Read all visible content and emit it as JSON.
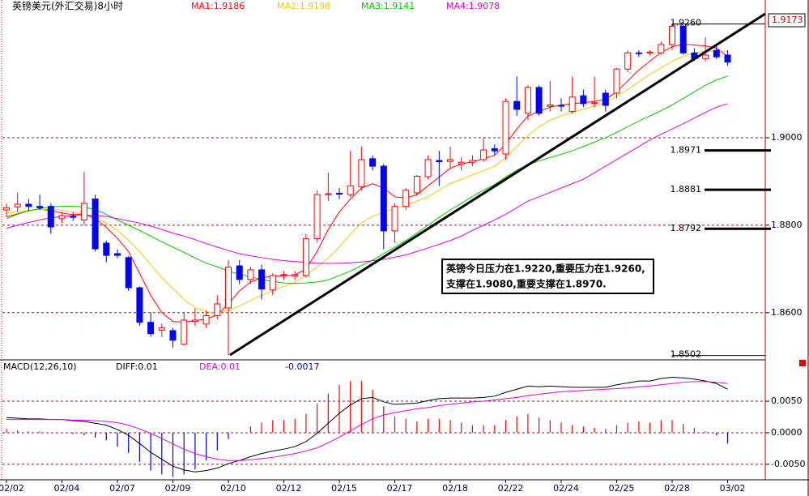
{
  "chart_data": [
    {
      "type": "candlestick",
      "title": "英镑美元(外汇交易)8小时",
      "categories": [
        "02/02",
        null,
        null,
        null,
        null,
        "02/04",
        null,
        null,
        null,
        null,
        "02/07",
        null,
        null,
        null,
        null,
        "02/09",
        null,
        null,
        null,
        null,
        "02/10",
        null,
        null,
        null,
        null,
        "02/12",
        null,
        null,
        null,
        null,
        "02/15",
        null,
        null,
        null,
        null,
        "02/17",
        null,
        null,
        null,
        null,
        "02/18",
        null,
        null,
        null,
        null,
        "02/22",
        null,
        null,
        null,
        null,
        "02/24",
        null,
        null,
        null,
        null,
        "02/25",
        null,
        null,
        null,
        null,
        "02/28",
        null,
        null,
        null,
        null,
        "03/02"
      ],
      "open": [
        1.8835,
        1.8842,
        1.8848,
        1.8843,
        1.8843,
        1.8815,
        1.882,
        1.8812,
        1.886,
        1.8759,
        1.8735,
        1.8726,
        1.8657,
        1.8578,
        1.856,
        1.8559,
        1.8528,
        1.858,
        1.8574,
        1.8593,
        1.8611,
        1.8707,
        1.8676,
        1.8698,
        1.8652,
        1.8685,
        1.8684,
        1.8685,
        1.8769,
        1.887,
        1.8873,
        1.887,
        1.8888,
        1.8952,
        1.8935,
        1.8787,
        1.8843,
        1.8874,
        1.8911,
        1.8948,
        1.8946,
        1.894,
        1.8944,
        1.895,
        1.8975,
        1.8963,
        1.9083,
        1.9056,
        1.9115,
        1.9072,
        1.9074,
        1.906,
        1.9096,
        1.9078,
        1.9102,
        1.9102,
        1.9157,
        1.9194,
        1.9194,
        1.9194,
        1.9213,
        1.9255,
        1.9194,
        1.9181,
        1.92,
        1.9189
      ],
      "high": [
        1.885,
        1.8875,
        1.886,
        1.887,
        1.885,
        1.883,
        1.883,
        1.8922,
        1.887,
        1.8765,
        1.8745,
        1.873,
        1.866,
        1.86,
        1.8575,
        1.8565,
        1.86,
        1.861,
        1.8605,
        1.864,
        1.872,
        1.872,
        1.8705,
        1.871,
        1.869,
        1.8695,
        1.8695,
        1.878,
        1.888,
        1.892,
        1.8885,
        1.897,
        1.898,
        1.896,
        1.894,
        1.885,
        1.8885,
        1.8915,
        1.896,
        1.897,
        1.898,
        1.8955,
        1.896,
        1.9,
        1.8985,
        1.909,
        1.914,
        1.912,
        1.912,
        1.913,
        1.909,
        1.914,
        1.911,
        1.914,
        1.911,
        1.916,
        1.92,
        1.92,
        1.92,
        1.922,
        1.926,
        1.9258,
        1.9205,
        1.923,
        1.9215,
        1.92
      ],
      "low": [
        1.882,
        1.883,
        1.8832,
        1.8835,
        1.878,
        1.8805,
        1.881,
        1.88,
        1.874,
        1.8715,
        1.8725,
        1.865,
        1.857,
        1.8545,
        1.8545,
        1.852,
        1.8525,
        1.857,
        1.8565,
        1.8585,
        1.8502,
        1.8665,
        1.8665,
        1.863,
        1.864,
        1.8675,
        1.8675,
        1.868,
        1.876,
        1.8855,
        1.886,
        1.8865,
        1.888,
        1.8925,
        1.8745,
        1.876,
        1.8835,
        1.8868,
        1.8905,
        1.889,
        1.893,
        1.8925,
        1.8935,
        1.8945,
        1.896,
        1.895,
        1.905,
        1.904,
        1.905,
        1.906,
        1.906,
        1.9055,
        1.907,
        1.907,
        1.906,
        1.909,
        1.915,
        1.9185,
        1.9188,
        1.919,
        1.92,
        1.919,
        1.9175,
        1.9175,
        1.918,
        1.9165
      ],
      "close": [
        1.884,
        1.8848,
        1.8843,
        1.884,
        1.8796,
        1.8822,
        1.8818,
        1.885,
        1.8746,
        1.8731,
        1.8731,
        1.8657,
        1.8578,
        1.8552,
        1.8565,
        1.8537,
        1.8583,
        1.8583,
        1.8593,
        1.862,
        1.8704,
        1.8676,
        1.8698,
        1.8654,
        1.8685,
        1.8687,
        1.8687,
        1.8769,
        1.887,
        1.8872,
        1.8871,
        1.889,
        1.895,
        1.8935,
        1.8787,
        1.8843,
        1.888,
        1.8912,
        1.895,
        1.8945,
        1.895,
        1.8944,
        1.8948,
        1.8972,
        1.897,
        1.9083,
        1.9065,
        1.9115,
        1.9056,
        1.9075,
        1.9073,
        1.9093,
        1.9078,
        1.908,
        1.9074,
        1.9157,
        1.9194,
        1.9193,
        1.9196,
        1.9213,
        1.9255,
        1.9194,
        1.9181,
        1.9189,
        1.9185,
        1.9173
      ],
      "up_color": "#ff0000",
      "down_color": "#0000ff",
      "series": [
        {
          "name": "MA1:1.9186",
          "color": "#ff0000",
          "values": [
            1.8819,
            1.8826,
            1.8833,
            1.8837,
            1.8833,
            1.8828,
            1.8824,
            1.8826,
            1.8815,
            1.8795,
            1.877,
            1.874,
            1.869,
            1.864,
            1.86,
            1.858,
            1.8578,
            1.8582,
            1.8585,
            1.8595,
            1.862,
            1.865,
            1.867,
            1.868,
            1.8683,
            1.8684,
            1.8686,
            1.87,
            1.874,
            1.879,
            1.883,
            1.886,
            1.8885,
            1.8895,
            1.8885,
            1.8865,
            1.8862,
            1.887,
            1.889,
            1.891,
            1.893,
            1.894,
            1.8945,
            1.8952,
            1.896,
            1.8985,
            1.902,
            1.905,
            1.906,
            1.907,
            1.9075,
            1.9078,
            1.908,
            1.9083,
            1.9088,
            1.9105,
            1.913,
            1.9155,
            1.9175,
            1.9195,
            1.9208,
            1.9214,
            1.9212,
            1.921,
            1.9205,
            1.9186
          ]
        },
        {
          "name": "MA2:1.9198",
          "color": "#f0c800",
          "values": [
            1.8828,
            1.883,
            1.8834,
            1.8836,
            1.8836,
            1.8834,
            1.883,
            1.8826,
            1.8818,
            1.8805,
            1.8788,
            1.8765,
            1.874,
            1.871,
            1.868,
            1.8655,
            1.863,
            1.8612,
            1.8602,
            1.86,
            1.8605,
            1.8615,
            1.8628,
            1.864,
            1.865,
            1.866,
            1.867,
            1.8685,
            1.8705,
            1.8725,
            1.875,
            1.878,
            1.8805,
            1.882,
            1.883,
            1.8838,
            1.8846,
            1.8855,
            1.8865,
            1.888,
            1.8895,
            1.8905,
            1.8915,
            1.8925,
            1.8935,
            1.8955,
            1.898,
            1.9005,
            1.9025,
            1.904,
            1.905,
            1.9058,
            1.9065,
            1.9072,
            1.908,
            1.9095,
            1.911,
            1.9128,
            1.9145,
            1.916,
            1.9175,
            1.9186,
            1.9194,
            1.9198,
            1.9198,
            1.9198
          ]
        },
        {
          "name": "MA3:1.9141",
          "color": "#00c800",
          "values": [
            1.8815,
            1.8825,
            1.8833,
            1.8838,
            1.8842,
            1.8843,
            1.8843,
            1.8842,
            1.8835,
            1.8825,
            1.8812,
            1.88,
            1.8788,
            1.8775,
            1.8762,
            1.875,
            1.8738,
            1.8725,
            1.8713,
            1.8705,
            1.8695,
            1.8688,
            1.8682,
            1.8676,
            1.8671,
            1.8668,
            1.8667,
            1.8668,
            1.867,
            1.8675,
            1.8685,
            1.8695,
            1.8708,
            1.872,
            1.8735,
            1.875,
            1.8765,
            1.8782,
            1.88,
            1.8818,
            1.8835,
            1.885,
            1.8866,
            1.888,
            1.8893,
            1.891,
            1.8926,
            1.8938,
            1.8947,
            1.8955,
            1.8962,
            1.897,
            1.898,
            1.899,
            1.9,
            1.9012,
            1.9025,
            1.9038,
            1.905,
            1.9062,
            1.9075,
            1.909,
            1.9105,
            1.912,
            1.9132,
            1.9141
          ]
        },
        {
          "name": "MA4:1.9078",
          "color": "#e000e0",
          "values": [
            1.8793,
            1.88,
            1.8806,
            1.8812,
            1.8817,
            1.882,
            1.8822,
            1.8823,
            1.8822,
            1.882,
            1.8815,
            1.881,
            1.8805,
            1.8798,
            1.879,
            1.8782,
            1.8775,
            1.8767,
            1.8758,
            1.875,
            1.8742,
            1.8735,
            1.873,
            1.8726,
            1.8722,
            1.8719,
            1.8717,
            1.8715,
            1.8713,
            1.8713,
            1.8713,
            1.8714,
            1.8716,
            1.8719,
            1.8722,
            1.8727,
            1.8732,
            1.874,
            1.8748,
            1.8756,
            1.8765,
            1.8775,
            1.8788,
            1.88,
            1.8812,
            1.8825,
            1.884,
            1.8855,
            1.8865,
            1.8875,
            1.8885,
            1.8895,
            1.8905,
            1.892,
            1.8935,
            1.895,
            1.8965,
            1.898,
            1.8995,
            1.9008,
            1.902,
            1.9032,
            1.9045,
            1.9058,
            1.907,
            1.9078
          ]
        }
      ],
      "ylim": [
        1.8494,
        1.9315
      ],
      "yticks": [
        {
          "value": 1.86,
          "label": "1.8600"
        },
        {
          "value": 1.88,
          "label": "1.8800"
        },
        {
          "value": 1.9,
          "label": "1.9000"
        }
      ],
      "grid": true,
      "levels": [
        {
          "value": 1.926,
          "label": "1.9260",
          "thick": false
        },
        {
          "value": 1.8971,
          "label": "1.8971",
          "thick": true
        },
        {
          "value": 1.8881,
          "label": "1.8881",
          "thick": true
        },
        {
          "value": 1.8792,
          "label": "1.8792",
          "thick": true
        },
        {
          "value": 1.8502,
          "label": "1.8502",
          "thick": false
        }
      ],
      "last_price": 1.9173,
      "annotation": [
        "英镑今日压力在1.9220,重要压力在1.9260,",
        "支撑在1.9080,重要支撑在1.8970."
      ]
    },
    {
      "type": "macd",
      "title": "MACD(12,26,10)",
      "series": [
        {
          "name": "DIFF:0.01",
          "color": "#000000",
          "values": [
            0.0024,
            0.0023,
            0.0022,
            0.0022,
            0.0021,
            0.0021,
            0.0019,
            0.0018,
            0.0015,
            0.0012,
            0.0005,
            -0.0004,
            -0.0017,
            -0.0031,
            -0.0042,
            -0.0053,
            -0.0059,
            -0.0062,
            -0.006,
            -0.0056,
            -0.0049,
            -0.0044,
            -0.0038,
            -0.0033,
            -0.0029,
            -0.0026,
            -0.0022,
            -0.0014,
            -0.0001,
            0.0015,
            0.0031,
            0.0044,
            0.0054,
            0.0056,
            0.0049,
            0.0045,
            0.0046,
            0.0047,
            0.0051,
            0.0054,
            0.0055,
            0.0055,
            0.0055,
            0.0056,
            0.0058,
            0.0064,
            0.0069,
            0.0074,
            0.0073,
            0.0074,
            0.0073,
            0.0072,
            0.0072,
            0.0072,
            0.0072,
            0.0076,
            0.0079,
            0.0082,
            0.0082,
            0.0086,
            0.0088,
            0.0087,
            0.0085,
            0.0082,
            0.0078,
            0.0069
          ]
        },
        {
          "name": "DEA:0.01",
          "color": "#e000e0",
          "values": [
            0.0021,
            0.0021,
            0.0021,
            0.0021,
            0.0021,
            0.0021,
            0.002,
            0.002,
            0.0019,
            0.0018,
            0.0016,
            0.0012,
            0.0006,
            -0.0001,
            -0.0009,
            -0.0018,
            -0.0026,
            -0.0033,
            -0.0038,
            -0.0042,
            -0.0044,
            -0.0044,
            -0.0043,
            -0.0041,
            -0.0039,
            -0.0036,
            -0.0033,
            -0.0029,
            -0.0024,
            -0.0016,
            -0.0007,
            0.0003,
            0.0013,
            0.0022,
            0.0028,
            0.0032,
            0.0035,
            0.0038,
            0.004,
            0.0043,
            0.0045,
            0.0047,
            0.0049,
            0.005,
            0.0052,
            0.0054,
            0.0056,
            0.0059,
            0.0061,
            0.0063,
            0.0065,
            0.0066,
            0.0067,
            0.0068,
            0.0069,
            0.007,
            0.0071,
            0.0073,
            0.0074,
            0.0076,
            0.0078,
            0.008,
            0.0081,
            0.0081,
            0.008,
            0.0078
          ]
        }
      ],
      "histogram": {
        "up_color": "#ff0000",
        "down_color": "#0000ff",
        "last": -0.0017,
        "values": [
          0.0006,
          0.0004,
          0.0002,
          0.0002,
          0,
          0,
          -0.0002,
          -0.0004,
          -0.0008,
          -0.0012,
          -0.0022,
          -0.0032,
          -0.0046,
          -0.006,
          -0.0066,
          -0.007,
          -0.0066,
          -0.0058,
          -0.0044,
          -0.0028,
          -0.001,
          0,
          0.001,
          0.0016,
          0.002,
          0.002,
          0.0022,
          0.003,
          0.0046,
          0.0062,
          0.0076,
          0.0082,
          0.0082,
          0.0068,
          0.0042,
          0.0026,
          0.0022,
          0.0018,
          0.0022,
          0.0022,
          0.002,
          0.0016,
          0.0012,
          0.0012,
          0.0012,
          0.002,
          0.0026,
          0.003,
          0.0024,
          0.002,
          0.0016,
          0.0012,
          0.001,
          0.0008,
          0.0006,
          0.0012,
          0.0016,
          0.0018,
          0.0016,
          0.002,
          0.002,
          0.0014,
          0.0008,
          0.0002,
          -0.0004,
          -0.0017
        ]
      },
      "ylim": [
        -0.0072,
        0.0113
      ],
      "yticks": [
        {
          "value": 0.005,
          "label": "0.0050"
        },
        {
          "value": 0,
          "label": "0.0000"
        },
        {
          "value": -0.005,
          "label": "-0.0050"
        }
      ],
      "grid": true
    }
  ]
}
